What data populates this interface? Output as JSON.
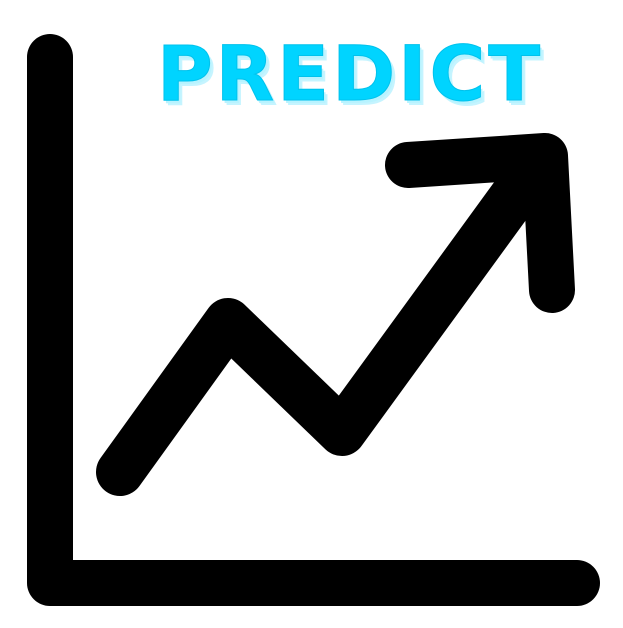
{
  "title": "PREDICT",
  "colors": {
    "title": "#00d4ff",
    "icon": "#000000",
    "background": "#ffffff"
  },
  "icons": {
    "axes": "chart-axes-icon",
    "trend": "trend-up-arrow-icon"
  }
}
